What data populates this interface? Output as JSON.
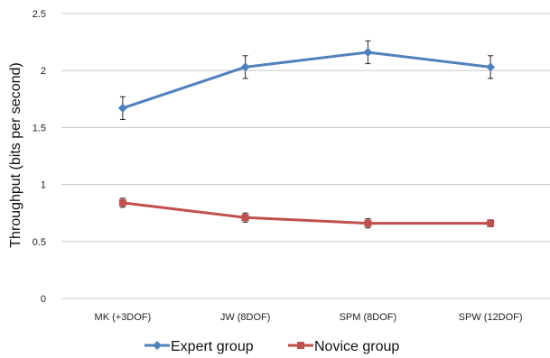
{
  "chart_data": {
    "type": "line",
    "title": "",
    "xlabel": "",
    "ylabel": "Throughput (bits per second)",
    "categories": [
      "MK (+3DOF)",
      "JW (8DOF)",
      "SPM (8DOF)",
      "SPW (12DOF)"
    ],
    "ylim": [
      0,
      2.5
    ],
    "yticks": [
      "0",
      "0.5",
      "1",
      "1.5",
      "2",
      "2.5"
    ],
    "grid": "horizontal",
    "legend_position": "bottom",
    "series": [
      {
        "name": "Expert group",
        "color": "#4f81bd",
        "marker": "diamond",
        "values": [
          1.67,
          2.03,
          2.16,
          2.03
        ],
        "error": [
          0.1,
          0.1,
          0.1,
          0.1
        ]
      },
      {
        "name": "Novice group",
        "color": "#c0504d",
        "marker": "square",
        "values": [
          0.84,
          0.71,
          0.66,
          0.66
        ],
        "error": [
          0.04,
          0.04,
          0.04,
          0.03
        ]
      }
    ]
  }
}
